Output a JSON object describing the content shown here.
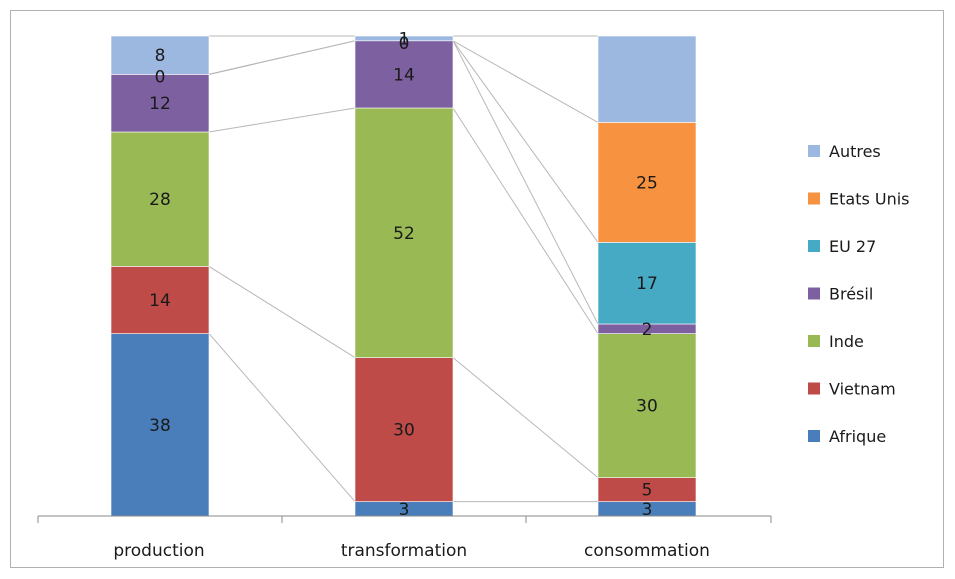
{
  "chart_data": {
    "type": "bar",
    "stacked": true,
    "categories": [
      "production",
      "transformation",
      "consommation"
    ],
    "series": [
      {
        "name": "Afrique",
        "color": "#4a7ebb",
        "values": [
          38,
          3,
          3
        ]
      },
      {
        "name": "Vietnam",
        "color": "#be4b48",
        "values": [
          14,
          30,
          5
        ]
      },
      {
        "name": "Inde",
        "color": "#98b954",
        "values": [
          28,
          52,
          30
        ]
      },
      {
        "name": "Brésil",
        "color": "#7d60a0",
        "values": [
          12,
          14,
          2
        ]
      },
      {
        "name": "EU 27",
        "color": "#46aac5",
        "values": [
          0,
          0,
          17
        ]
      },
      {
        "name": "Etats Unis",
        "color": "#f69240",
        "values": [
          0,
          0,
          25
        ]
      },
      {
        "name": "Autres",
        "color": "#9db8e0",
        "values": [
          8,
          1,
          18
        ]
      }
    ],
    "data_labels": [
      [
        "38",
        "3",
        "3"
      ],
      [
        "14",
        "30",
        "5"
      ],
      [
        "28",
        "52",
        "30"
      ],
      [
        "12",
        "14",
        "2"
      ],
      [
        "0",
        "0",
        "17"
      ],
      [
        "",
        "",
        "25"
      ],
      [
        "8",
        "1",
        ""
      ]
    ],
    "legend_order": [
      "Autres",
      "Etats Unis",
      "EU 27",
      "Brésil",
      "Inde",
      "Vietnam",
      "Afrique"
    ],
    "legend_position": "right",
    "title": "",
    "xlabel": "",
    "ylabel": "",
    "grid": false,
    "connector_lines": true
  }
}
